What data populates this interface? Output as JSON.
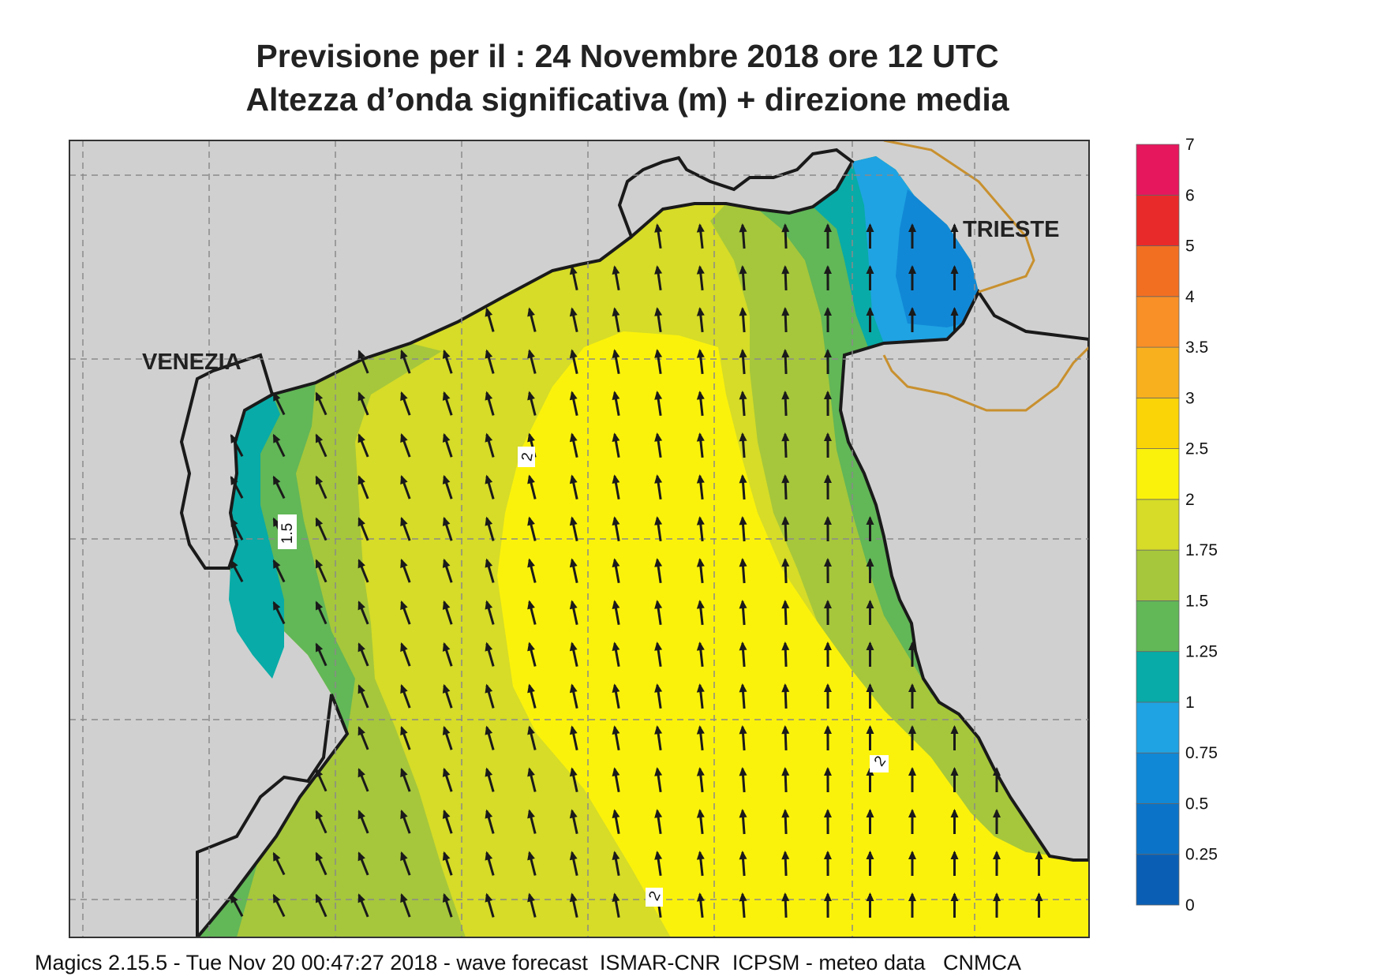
{
  "title": {
    "line1": "Previsione per il  :  24 Novembre  2018   ore 12 UTC",
    "line2": "Altezza d’onda significativa (m) + direzione media"
  },
  "places": {
    "venezia": "VENEZIA",
    "trieste": "TRIESTE"
  },
  "contour_labels": [
    "1.5",
    "2",
    "2",
    "2"
  ],
  "legend": {
    "labels": [
      "0",
      "0.25",
      "0.5",
      "0.75",
      "1",
      "1.25",
      "1.5",
      "1.75",
      "2",
      "2.5",
      "3",
      "3.5",
      "4",
      "5",
      "6",
      "7"
    ],
    "colors": [
      "#0a5fb4",
      "#0b74c8",
      "#1188d6",
      "#1fa3e3",
      "#08aba7",
      "#62b757",
      "#a6c73b",
      "#d6dc27",
      "#fbf20b",
      "#fbd408",
      "#f8b01f",
      "#f89027",
      "#f26f22",
      "#e92a2a",
      "#e6175d"
    ]
  },
  "colors": {
    "land": "#d0d0d0",
    "coast": "#1a1a1a",
    "border": "#c8902e",
    "arrow": "#1a1a1a"
  },
  "footer": "Magics 2.15.5 - Tue Nov 20 00:47:27 2018 - wave forecast  ISMAR-CNR  ICPSM - meteo data   CNMCA"
}
